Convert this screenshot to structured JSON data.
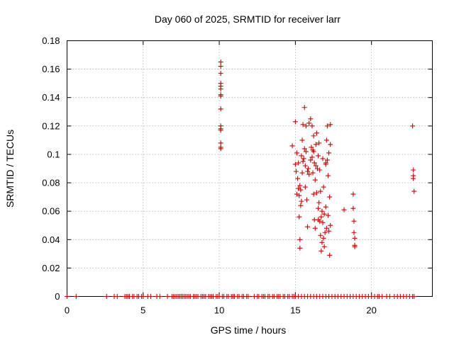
{
  "chart_data": {
    "type": "scatter",
    "title": "Day 060 of 2025, SRMTID for receiver larr",
    "xlabel": "GPS time / hours",
    "ylabel": "SRMTID / TECUs",
    "xlim": [
      0,
      24
    ],
    "ylim": [
      0,
      0.18
    ],
    "xticks": [
      0,
      5,
      10,
      15,
      20
    ],
    "xtick_labels": [
      "0",
      "5",
      "10",
      "15",
      "20"
    ],
    "yticks": [
      0,
      0.02,
      0.04,
      0.06,
      0.08,
      0.1,
      0.12,
      0.14,
      0.16,
      0.18
    ],
    "ytick_labels": [
      "0",
      "0.02",
      "0.04",
      "0.06",
      "0.08",
      "0.1",
      "0.12",
      "0.14",
      "0.16",
      "0.18"
    ],
    "grid": true,
    "legend": "none",
    "marker": "+",
    "color": "#cc0000",
    "series": [
      {
        "x": [
          0.0,
          0.6,
          2.6,
          3.1,
          3.3,
          3.8,
          3.9,
          4.0,
          4.1,
          4.3,
          4.4,
          4.6,
          4.7,
          4.9,
          5.0,
          5.3,
          5.5,
          5.9,
          6.1,
          6.6,
          6.9,
          7.0,
          7.1,
          7.2,
          7.3,
          7.4,
          7.5,
          7.6,
          7.7,
          7.8,
          7.9,
          8.0,
          8.1,
          8.3,
          8.4,
          8.5,
          8.6,
          8.8,
          8.9,
          9.0,
          9.1,
          9.3,
          9.4,
          9.5,
          9.6,
          9.8,
          9.9,
          10.0,
          10.2,
          10.3,
          10.5,
          10.6,
          10.8,
          10.9,
          11.0,
          11.2,
          11.3,
          11.5,
          11.6,
          11.8,
          11.9,
          12.3,
          12.5,
          12.6,
          12.8,
          12.9,
          13.0,
          13.2,
          13.3,
          13.5,
          13.6,
          13.8,
          13.9,
          14.0,
          14.2,
          14.3,
          14.5,
          14.6,
          14.8,
          14.9,
          15.0,
          15.2,
          15.4,
          15.6,
          15.8,
          16.0,
          16.2,
          16.4,
          16.6,
          16.8,
          17.0,
          17.2,
          17.4,
          17.6,
          17.8,
          18.0,
          18.2,
          18.4,
          18.6,
          18.8,
          19.0,
          19.2,
          19.4,
          19.6,
          19.8,
          20.0,
          20.2,
          20.4,
          20.5,
          20.7,
          21.0,
          21.2,
          21.5,
          21.7,
          21.9,
          22.1,
          22.3,
          22.5,
          22.7,
          22.8
        ],
        "y": [
          0,
          0,
          0,
          0,
          0,
          0,
          0,
          0,
          0,
          0,
          0,
          0,
          0,
          0,
          0,
          0,
          0,
          0,
          0,
          0,
          0,
          0,
          0,
          0,
          0,
          0,
          0,
          0,
          0,
          0,
          0,
          0,
          0,
          0,
          0,
          0,
          0,
          0,
          0,
          0,
          0,
          0,
          0,
          0,
          0,
          0,
          0,
          0,
          0,
          0,
          0,
          0,
          0,
          0,
          0,
          0,
          0,
          0,
          0,
          0,
          0,
          0,
          0,
          0,
          0,
          0,
          0,
          0,
          0,
          0,
          0,
          0,
          0,
          0,
          0,
          0,
          0,
          0,
          0,
          0,
          0,
          0,
          0,
          0,
          0,
          0,
          0,
          0,
          0,
          0,
          0,
          0,
          0,
          0,
          0,
          0,
          0,
          0,
          0,
          0,
          0,
          0,
          0,
          0,
          0,
          0,
          0,
          0,
          0,
          0,
          0,
          0,
          0,
          0,
          0,
          0,
          0,
          0,
          0,
          0
        ]
      },
      {
        "x": [
          10.1,
          10.1,
          10.1,
          10.1,
          10.1,
          10.1,
          10.1,
          10.1,
          10.1,
          10.1,
          10.1,
          10.1,
          10.1,
          10.1,
          10.1
        ],
        "y": [
          0.165,
          0.162,
          0.157,
          0.15,
          0.148,
          0.146,
          0.142,
          0.141,
          0.132,
          0.12,
          0.118,
          0.117,
          0.108,
          0.105,
          0.104
        ]
      },
      {
        "x": [
          14.8,
          15.0,
          15.0,
          15.05,
          15.1,
          15.1,
          15.15,
          15.2,
          15.2,
          15.25,
          15.25,
          15.3,
          15.3,
          15.3,
          15.35,
          15.35,
          15.4,
          15.4,
          15.45,
          15.45,
          15.5,
          15.5,
          15.55,
          15.6,
          15.6,
          15.65,
          15.65,
          15.7,
          15.7,
          15.75,
          15.8,
          15.8,
          15.85,
          15.9,
          16.0,
          16.0,
          16.05,
          16.1,
          16.1,
          16.15,
          16.15,
          16.2,
          16.2,
          16.25,
          16.25,
          16.3,
          16.3,
          16.35,
          16.35,
          16.4,
          16.4,
          16.45,
          16.5,
          16.5,
          16.55,
          16.55,
          16.6,
          16.6,
          16.65,
          16.65,
          16.7,
          16.7,
          16.75,
          16.75,
          16.8,
          16.8,
          16.85,
          16.85,
          16.9,
          16.9,
          16.95,
          17.0,
          17.0,
          17.05,
          17.05,
          17.1,
          17.1,
          17.15,
          17.15,
          17.2,
          17.2,
          17.25,
          17.25,
          17.3,
          17.3,
          17.3,
          15.9,
          16.2,
          16.5,
          17.0
        ],
        "y": [
          0.106,
          0.123,
          0.093,
          0.088,
          0.072,
          0.101,
          0.083,
          0.094,
          0.076,
          0.071,
          0.056,
          0.04,
          0.034,
          0.078,
          0.075,
          0.064,
          0.099,
          0.067,
          0.11,
          0.087,
          0.121,
          0.095,
          0.097,
          0.133,
          0.104,
          0.092,
          0.077,
          0.12,
          0.102,
          0.068,
          0.049,
          0.088,
          0.09,
          0.086,
          0.125,
          0.096,
          0.105,
          0.12,
          0.098,
          0.103,
          0.087,
          0.113,
          0.072,
          0.094,
          0.054,
          0.082,
          0.048,
          0.107,
          0.092,
          0.115,
          0.073,
          0.09,
          0.099,
          0.062,
          0.108,
          0.066,
          0.089,
          0.053,
          0.074,
          0.043,
          0.056,
          0.032,
          0.06,
          0.038,
          0.097,
          0.052,
          0.077,
          0.041,
          0.058,
          0.035,
          0.045,
          0.093,
          0.063,
          0.11,
          0.048,
          0.12,
          0.096,
          0.085,
          0.057,
          0.101,
          0.046,
          0.07,
          0.029,
          0.107,
          0.121,
          0.05,
          0.122,
          0.102,
          0.054,
          0.094
        ]
      },
      {
        "x": [
          18.2,
          18.8,
          18.8,
          18.85,
          18.85,
          18.9,
          18.9,
          18.9
        ],
        "y": [
          0.061,
          0.072,
          0.062,
          0.053,
          0.045,
          0.041,
          0.036,
          0.035
        ]
      },
      {
        "x": [
          22.7,
          22.75,
          22.75,
          22.75,
          22.8
        ],
        "y": [
          0.12,
          0.089,
          0.085,
          0.083,
          0.074
        ]
      }
    ]
  }
}
